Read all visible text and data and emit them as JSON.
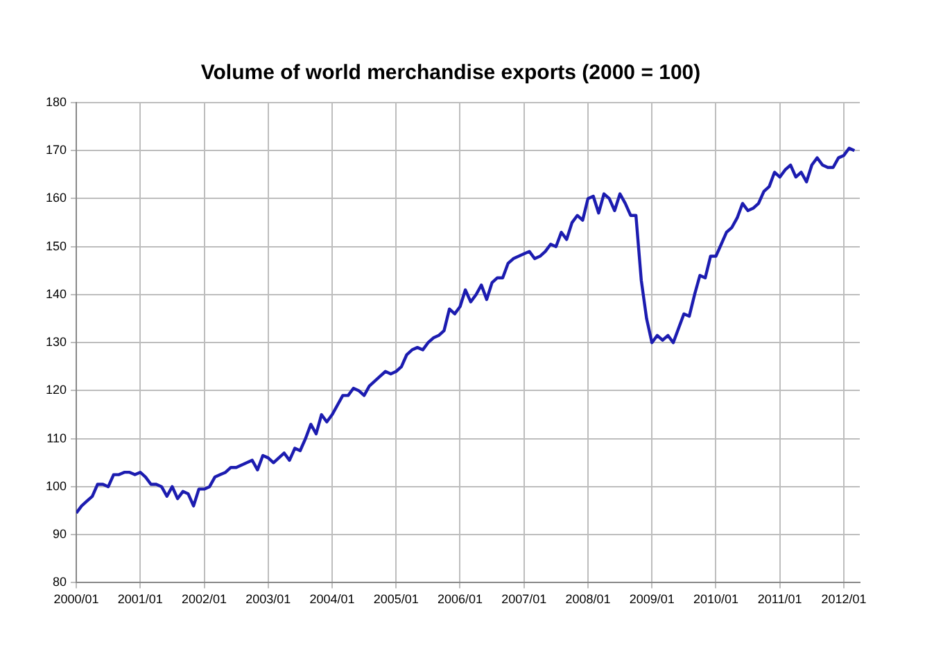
{
  "chart_data": {
    "type": "line",
    "title": "Volume of world merchandise exports (2000 = 100)",
    "x": [
      "2000-01",
      "2000-02",
      "2000-03",
      "2000-04",
      "2000-05",
      "2000-06",
      "2000-07",
      "2000-08",
      "2000-09",
      "2000-10",
      "2000-11",
      "2000-12",
      "2001-01",
      "2001-02",
      "2001-03",
      "2001-04",
      "2001-05",
      "2001-06",
      "2001-07",
      "2001-08",
      "2001-09",
      "2001-10",
      "2001-11",
      "2001-12",
      "2002-01",
      "2002-02",
      "2002-03",
      "2002-04",
      "2002-05",
      "2002-06",
      "2002-07",
      "2002-08",
      "2002-09",
      "2002-10",
      "2002-11",
      "2002-12",
      "2003-01",
      "2003-02",
      "2003-03",
      "2003-04",
      "2003-05",
      "2003-06",
      "2003-07",
      "2003-08",
      "2003-09",
      "2003-10",
      "2003-11",
      "2003-12",
      "2004-01",
      "2004-02",
      "2004-03",
      "2004-04",
      "2004-05",
      "2004-06",
      "2004-07",
      "2004-08",
      "2004-09",
      "2004-10",
      "2004-11",
      "2004-12",
      "2005-01",
      "2005-02",
      "2005-03",
      "2005-04",
      "2005-05",
      "2005-06",
      "2005-07",
      "2005-08",
      "2005-09",
      "2005-10",
      "2005-11",
      "2005-12",
      "2006-01",
      "2006-02",
      "2006-03",
      "2006-04",
      "2006-05",
      "2006-06",
      "2006-07",
      "2006-08",
      "2006-09",
      "2006-10",
      "2006-11",
      "2006-12",
      "2007-01",
      "2007-02",
      "2007-03",
      "2007-04",
      "2007-05",
      "2007-06",
      "2007-07",
      "2007-08",
      "2007-09",
      "2007-10",
      "2007-11",
      "2007-12",
      "2008-01",
      "2008-02",
      "2008-03",
      "2008-04",
      "2008-05",
      "2008-06",
      "2008-07",
      "2008-08",
      "2008-09",
      "2008-10",
      "2008-11",
      "2008-12",
      "2009-01",
      "2009-02",
      "2009-03",
      "2009-04",
      "2009-05",
      "2009-06",
      "2009-07",
      "2009-08",
      "2009-09",
      "2009-10",
      "2009-11",
      "2009-12",
      "2010-01",
      "2010-02",
      "2010-03",
      "2010-04",
      "2010-05",
      "2010-06",
      "2010-07",
      "2010-08",
      "2010-09",
      "2010-10",
      "2010-11",
      "2010-12",
      "2011-01",
      "2011-02",
      "2011-03",
      "2011-04",
      "2011-05",
      "2011-06",
      "2011-07",
      "2011-08",
      "2011-09",
      "2011-10",
      "2011-11",
      "2011-12",
      "2012-01",
      "2012-02",
      "2012-03"
    ],
    "series": [
      {
        "color": "#1c1cb0",
        "values": [
          94.5,
          96,
          97,
          98,
          100.5,
          100.5,
          100,
          102.5,
          102.5,
          103,
          103,
          102.5,
          103,
          102,
          100.5,
          100.5,
          100,
          98,
          100,
          97.5,
          99,
          98.5,
          96,
          99.5,
          99.5,
          100,
          102,
          102.5,
          103,
          104,
          104,
          104.5,
          105,
          105.5,
          103.5,
          106.5,
          106,
          105,
          106,
          107,
          105.5,
          108,
          107.5,
          110,
          113,
          111,
          115,
          113.5,
          115,
          117,
          119,
          119,
          120.5,
          120,
          119,
          121,
          122,
          123,
          124,
          123.5,
          124,
          125,
          127.5,
          128.5,
          129,
          128.5,
          130,
          131,
          131.5,
          132.5,
          137,
          136,
          137.5,
          141,
          138.5,
          140,
          142,
          139,
          142.5,
          143.5,
          143.5,
          146.5,
          147.5,
          148,
          148.5,
          149,
          147.5,
          148,
          149,
          150.5,
          150,
          153,
          151.5,
          155,
          156.5,
          155.5,
          160,
          160.5,
          157,
          161,
          160,
          157.5,
          161,
          159,
          156.5,
          156.5,
          143,
          135,
          130,
          131.5,
          130.5,
          131.5,
          130,
          133,
          136,
          135.5,
          140,
          144,
          143.5,
          148,
          148,
          150.5,
          153,
          154,
          156,
          159,
          157.5,
          158,
          159,
          161.5,
          162.5,
          165.5,
          164.5,
          166,
          167,
          164.5,
          165.5,
          163.5,
          167,
          168.5,
          167,
          166.5,
          166.5,
          168.5,
          169,
          170.5,
          170
        ]
      }
    ],
    "xlim": [
      "2000-01",
      "2012-04"
    ],
    "xticks": [
      {
        "value": "2000-01",
        "label": "2000/01"
      },
      {
        "value": "2001-01",
        "label": "2001/01"
      },
      {
        "value": "2002-01",
        "label": "2002/01"
      },
      {
        "value": "2003-01",
        "label": "2003/01"
      },
      {
        "value": "2004-01",
        "label": "2004/01"
      },
      {
        "value": "2005-01",
        "label": "2005/01"
      },
      {
        "value": "2006-01",
        "label": "2006/01"
      },
      {
        "value": "2007-01",
        "label": "2007/01"
      },
      {
        "value": "2008-01",
        "label": "2008/01"
      },
      {
        "value": "2009-01",
        "label": "2009/01"
      },
      {
        "value": "2010-01",
        "label": "2010/01"
      },
      {
        "value": "2011-01",
        "label": "2011/01"
      },
      {
        "value": "2012-01",
        "label": "2012/01"
      }
    ],
    "ylim": [
      80,
      180
    ],
    "yticks": [
      80,
      90,
      100,
      110,
      120,
      130,
      140,
      150,
      160,
      170,
      180
    ],
    "grid": true,
    "marker": "none",
    "line_style": "solid"
  }
}
